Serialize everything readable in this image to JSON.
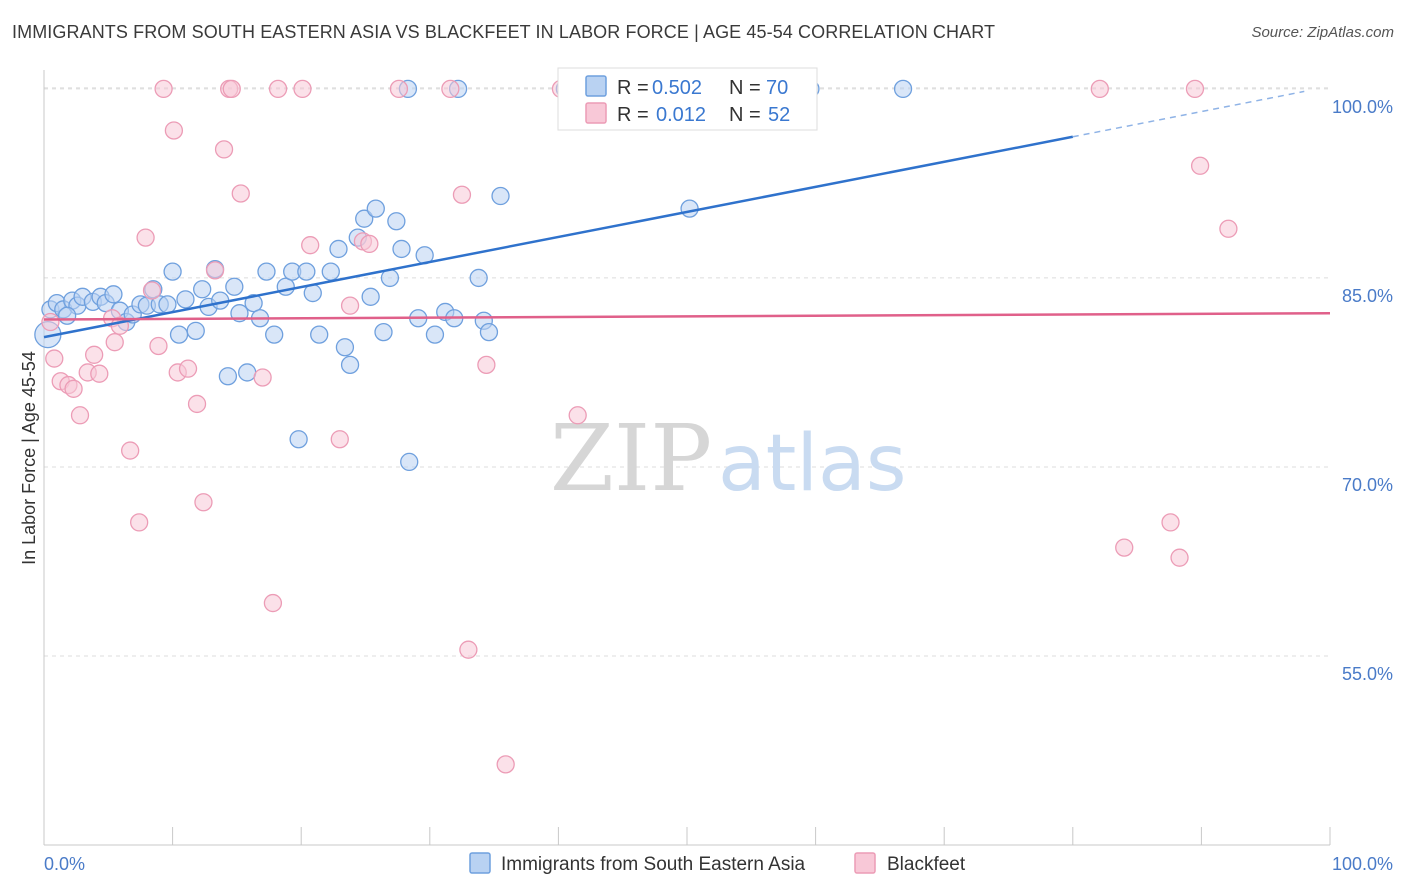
{
  "header": {
    "title": "IMMIGRANTS FROM SOUTH EASTERN ASIA VS BLACKFEET IN LABOR FORCE | AGE 45-54 CORRELATION CHART",
    "source": "Source: ZipAtlas.com"
  },
  "watermark": {
    "zip": "ZIP",
    "atlas": "atlas"
  },
  "legend": {
    "r_label": "R =",
    "n_label": "N =",
    "rows": [
      {
        "r": "0.502",
        "n": "70"
      },
      {
        "r": "0.012",
        "n": "52"
      }
    ]
  },
  "chart_data": {
    "type": "scatter",
    "title": "IMMIGRANTS FROM SOUTH EASTERN ASIA VS BLACKFEET IN LABOR FORCE | AGE 45-54 CORRELATION CHART",
    "xlabel": "",
    "ylabel": "In Labor Force | Age 45-54",
    "xlim": [
      0,
      100
    ],
    "ylim": [
      40,
      101.5
    ],
    "x_tick_labels": [
      "0.0%",
      "100.0%"
    ],
    "y_ticks": [
      55,
      70,
      85,
      100
    ],
    "y_tick_labels": [
      "55.0%",
      "70.0%",
      "85.0%",
      "100.0%"
    ],
    "grid": true,
    "legend_position": "top-center",
    "series": [
      {
        "name": "Immigrants from South Eastern Asia",
        "color": "#6fa0de",
        "fill": "#b9d2f2",
        "line_color": "#2f72cc",
        "r": 0.502,
        "n": 70,
        "trend": {
          "x0": 0,
          "y0": 80.3,
          "x1": 80,
          "y1": 96.2,
          "dashed_to_x": 98,
          "dashed_to_y": 99.8
        },
        "points": [
          [
            0.3,
            80.5
          ],
          [
            0.5,
            82.5
          ],
          [
            1.0,
            83.0
          ],
          [
            1.5,
            82.5
          ],
          [
            2.2,
            83.2
          ],
          [
            2.6,
            82.8
          ],
          [
            3.0,
            83.5
          ],
          [
            3.8,
            83.1
          ],
          [
            4.4,
            83.5
          ],
          [
            4.8,
            83.0
          ],
          [
            5.4,
            83.7
          ],
          [
            5.9,
            82.4
          ],
          [
            6.4,
            81.5
          ],
          [
            6.9,
            82.1
          ],
          [
            7.5,
            82.9
          ],
          [
            8.0,
            82.8
          ],
          [
            8.5,
            84.1
          ],
          [
            9.0,
            82.9
          ],
          [
            9.6,
            82.9
          ],
          [
            10.0,
            85.5
          ],
          [
            10.5,
            80.5
          ],
          [
            11.0,
            83.3
          ],
          [
            11.8,
            80.8
          ],
          [
            12.3,
            84.1
          ],
          [
            12.8,
            82.7
          ],
          [
            13.3,
            85.7
          ],
          [
            13.7,
            83.2
          ],
          [
            14.3,
            77.2
          ],
          [
            14.8,
            84.3
          ],
          [
            15.2,
            82.2
          ],
          [
            15.8,
            77.5
          ],
          [
            16.3,
            83.0
          ],
          [
            16.8,
            81.8
          ],
          [
            17.3,
            85.5
          ],
          [
            17.9,
            80.5
          ],
          [
            18.8,
            84.3
          ],
          [
            19.3,
            85.5
          ],
          [
            19.8,
            72.2
          ],
          [
            20.4,
            85.5
          ],
          [
            20.9,
            83.8
          ],
          [
            21.4,
            80.5
          ],
          [
            22.3,
            85.5
          ],
          [
            22.9,
            87.3
          ],
          [
            23.4,
            79.5
          ],
          [
            23.8,
            78.1
          ],
          [
            24.4,
            88.2
          ],
          [
            24.9,
            89.7
          ],
          [
            25.4,
            83.5
          ],
          [
            25.8,
            90.5
          ],
          [
            26.4,
            80.7
          ],
          [
            26.9,
            85.0
          ],
          [
            27.4,
            89.5
          ],
          [
            27.8,
            87.3
          ],
          [
            28.4,
            70.4
          ],
          [
            29.1,
            81.8
          ],
          [
            29.6,
            86.8
          ],
          [
            30.4,
            80.5
          ],
          [
            31.2,
            82.3
          ],
          [
            31.9,
            81.8
          ],
          [
            33.8,
            85.0
          ],
          [
            34.2,
            81.6
          ],
          [
            34.6,
            80.7
          ],
          [
            28.3,
            100.0
          ],
          [
            32.2,
            100.0
          ],
          [
            35.5,
            91.5
          ],
          [
            40.5,
            100.0
          ],
          [
            50.2,
            90.5
          ],
          [
            59.6,
            100.0
          ],
          [
            66.8,
            100.0
          ],
          [
            1.8,
            82.0
          ]
        ]
      },
      {
        "name": "Blackfeet",
        "color": "#ec9cb6",
        "fill": "#f8c8d7",
        "line_color": "#e0608a",
        "r": 0.012,
        "n": 52,
        "trend": {
          "x0": 0,
          "y0": 81.7,
          "x1": 100,
          "y1": 82.2
        },
        "points": [
          [
            0.5,
            81.5
          ],
          [
            0.8,
            78.6
          ],
          [
            1.3,
            76.8
          ],
          [
            1.9,
            76.5
          ],
          [
            2.3,
            76.2
          ],
          [
            2.8,
            74.1
          ],
          [
            3.4,
            77.5
          ],
          [
            3.9,
            78.9
          ],
          [
            4.3,
            77.4
          ],
          [
            5.3,
            81.8
          ],
          [
            5.5,
            79.9
          ],
          [
            5.9,
            81.2
          ],
          [
            6.7,
            71.3
          ],
          [
            7.4,
            65.6
          ],
          [
            7.9,
            88.2
          ],
          [
            8.4,
            84.0
          ],
          [
            8.9,
            79.6
          ],
          [
            9.3,
            100.0
          ],
          [
            10.1,
            96.7
          ],
          [
            10.4,
            77.5
          ],
          [
            11.2,
            77.8
          ],
          [
            11.9,
            75.0
          ],
          [
            12.4,
            67.2
          ],
          [
            13.3,
            85.6
          ],
          [
            14.0,
            95.2
          ],
          [
            14.4,
            100.0
          ],
          [
            14.6,
            100.0
          ],
          [
            15.3,
            91.7
          ],
          [
            17.0,
            77.1
          ],
          [
            17.8,
            59.2
          ],
          [
            20.1,
            100.0
          ],
          [
            23.0,
            72.2
          ],
          [
            23.8,
            82.8
          ],
          [
            24.8,
            87.9
          ],
          [
            25.3,
            87.7
          ],
          [
            27.6,
            100.0
          ],
          [
            31.6,
            100.0
          ],
          [
            32.5,
            91.6
          ],
          [
            33.0,
            55.5
          ],
          [
            34.4,
            78.1
          ],
          [
            35.9,
            46.4
          ],
          [
            40.2,
            100.0
          ],
          [
            41.5,
            74.1
          ],
          [
            18.2,
            100.0
          ],
          [
            20.7,
            87.6
          ],
          [
            82.1,
            100.0
          ],
          [
            84.0,
            63.6
          ],
          [
            87.6,
            65.6
          ],
          [
            89.5,
            100.0
          ],
          [
            89.9,
            93.9
          ],
          [
            92.1,
            88.9
          ],
          [
            88.3,
            62.8
          ]
        ]
      }
    ]
  }
}
